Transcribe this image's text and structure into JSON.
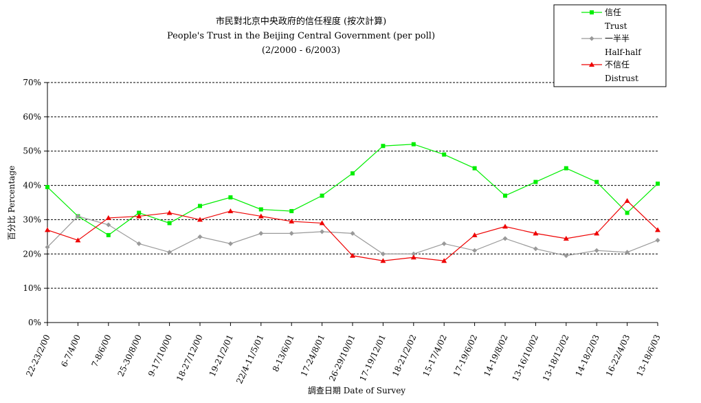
{
  "chart_data": {
    "type": "line",
    "title": "市民對北京中央政府的信任程度 (按次計算)",
    "subtitle": "People's Trust in the Beijing Central Government (per poll)",
    "period": "(2/2000 -  6/2003)",
    "xlabel": "調查日期 Date of Survey",
    "ylabel": "百分比 Percentage",
    "ylim": [
      0,
      70
    ],
    "yticks": [
      "0%",
      "10%",
      "20%",
      "30%",
      "40%",
      "50%",
      "60%",
      "70%"
    ],
    "grid": true,
    "legend_position": "top-right",
    "categories": [
      "22-23/2/00",
      "6-7/4/00",
      "7-8/6/00",
      "25-30/8/00",
      "9-17/10/00",
      "18-27/12/00",
      "19-21/2/01",
      "22/4-11/5/01",
      "8-13/6/01",
      "17-24/8/01",
      "26-29/10/01",
      "17-19/12/01",
      "18-21/2/02",
      "15-17/4/02",
      "17-19/6/02",
      "14-19/8/02",
      "13-16/10/02",
      "13-18/12/02",
      "14-18/2/03",
      "16-22/4/03",
      "13-18/6/03"
    ],
    "series": [
      {
        "name": "信任",
        "name_en": "Trust",
        "color": "#00ee00",
        "marker": "square",
        "values": [
          39.5,
          31.0,
          25.5,
          32.0,
          29.0,
          34.0,
          36.5,
          33.0,
          32.5,
          37.0,
          43.5,
          51.5,
          52.0,
          49.0,
          45.0,
          37.0,
          41.0,
          45.0,
          41.0,
          32.0,
          40.5
        ]
      },
      {
        "name": "一半半",
        "name_en": "Half-half",
        "color": "#999999",
        "marker": "diamond",
        "values": [
          22.0,
          31.0,
          28.5,
          23.0,
          20.5,
          25.0,
          23.0,
          26.0,
          26.0,
          26.5,
          26.0,
          20.0,
          20.0,
          23.0,
          21.0,
          24.5,
          21.5,
          19.5,
          21.0,
          20.5,
          24.0
        ]
      },
      {
        "name": "不信任",
        "name_en": "Distrust",
        "color": "#ee0000",
        "marker": "triangle",
        "values": [
          27.0,
          24.0,
          30.5,
          31.0,
          32.0,
          30.0,
          32.5,
          31.0,
          29.5,
          29.0,
          19.5,
          18.0,
          19.0,
          18.0,
          25.5,
          28.0,
          26.0,
          24.5,
          26.0,
          35.5,
          27.0
        ]
      }
    ]
  }
}
